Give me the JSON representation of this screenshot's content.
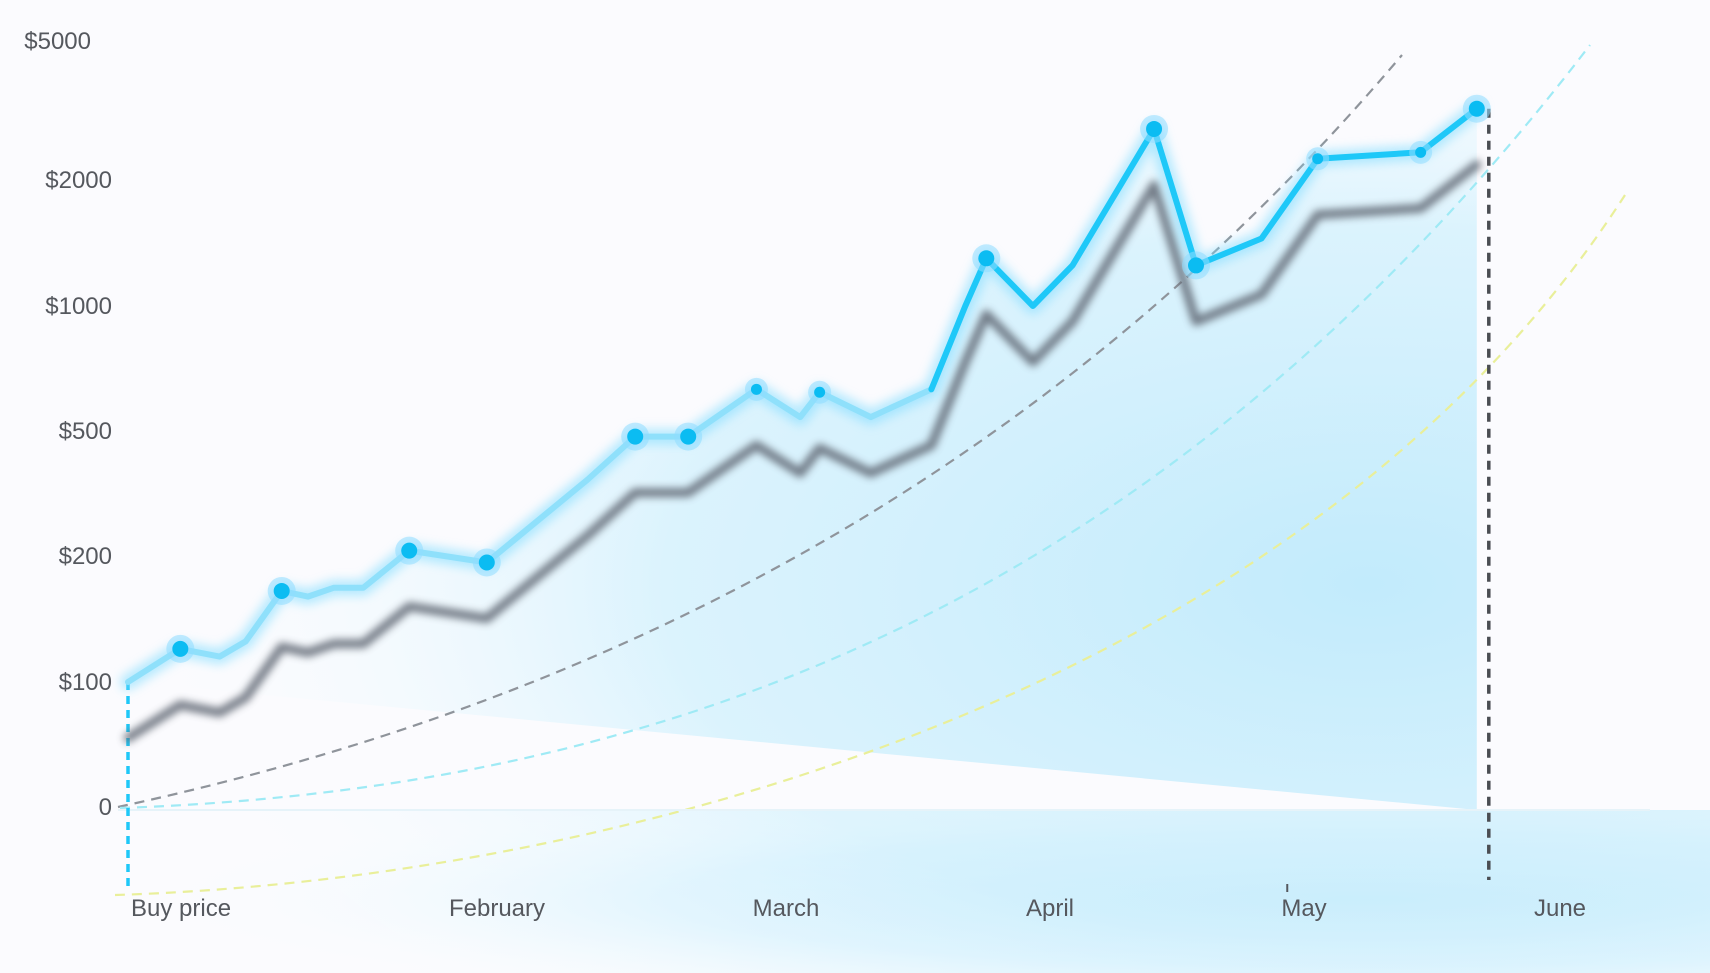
{
  "chart_data": {
    "type": "line",
    "title": "",
    "xlabel": "",
    "ylabel": "",
    "y_scale": "nonlinear-categorical",
    "y_ticks": [
      {
        "label": "0",
        "value": 0
      },
      {
        "label": "$100",
        "value": 100
      },
      {
        "label": "$200",
        "value": 200
      },
      {
        "label": "$500",
        "value": 500
      },
      {
        "label": "$1000",
        "value": 1000
      },
      {
        "label": "$2000",
        "value": 2000
      },
      {
        "label": "$5000",
        "value": 5000
      }
    ],
    "x_ticks": [
      "Buy price",
      "February",
      "March",
      "April",
      "May",
      "June"
    ],
    "grid": false,
    "legend": "none",
    "colors": {
      "main_line": "#1ec8f8",
      "main_line_early": "#8fe0fb",
      "shadow_line": "#5f6672",
      "marker": "#0bbcf2",
      "curve_gray": "#8f949b",
      "curve_cyan": "#9feaf5",
      "curve_yellow": "#e9ef9a",
      "area_fill": "#c5ecfb",
      "buy_marker": "#1ec8f8",
      "end_marker": "#4a4d52"
    },
    "series": [
      {
        "values": [
          {
            "x": 0.0,
            "y": 100,
            "marker": false
          },
          {
            "x": 0.16,
            "y": 120,
            "marker": true
          },
          {
            "x": 0.28,
            "y": 115,
            "marker": false
          },
          {
            "x": 0.36,
            "y": 125,
            "marker": false
          },
          {
            "x": 0.47,
            "y": 165,
            "marker": true
          },
          {
            "x": 0.55,
            "y": 160,
            "marker": false
          },
          {
            "x": 0.63,
            "y": 168,
            "marker": false
          },
          {
            "x": 0.72,
            "y": 168,
            "marker": false
          },
          {
            "x": 0.86,
            "y": 208,
            "marker": true
          },
          {
            "x": 1.12,
            "y": 193,
            "marker": true
          },
          {
            "x": 1.5,
            "y": 350,
            "marker": false
          },
          {
            "x": 1.68,
            "y": 480,
            "marker": true
          },
          {
            "x": 1.88,
            "y": 480,
            "marker": true
          },
          {
            "x": 2.15,
            "y": 630,
            "marker": true
          },
          {
            "x": 2.33,
            "y": 540,
            "marker": false
          },
          {
            "x": 2.41,
            "y": 620,
            "marker": true
          },
          {
            "x": 2.62,
            "y": 540,
            "marker": false
          },
          {
            "x": 2.87,
            "y": 630,
            "marker": false
          },
          {
            "x": 3.01,
            "y": 1000,
            "marker": false
          },
          {
            "x": 3.1,
            "y": 1300,
            "marker": true
          },
          {
            "x": 3.3,
            "y": 1000,
            "marker": false
          },
          {
            "x": 3.47,
            "y": 1250,
            "marker": false
          },
          {
            "x": 3.82,
            "y": 2800,
            "marker": true
          },
          {
            "x": 4.0,
            "y": 1250,
            "marker": true
          },
          {
            "x": 4.28,
            "y": 1450,
            "marker": false
          },
          {
            "x": 4.52,
            "y": 2300,
            "marker": true
          },
          {
            "x": 4.96,
            "y": 2400,
            "marker": true
          },
          {
            "x": 5.2,
            "y": 3200,
            "marker": true
          }
        ]
      }
    ],
    "annotations": {
      "buy_price_value": 100,
      "end_value": 3200,
      "may_tick_x": 4.39
    }
  }
}
